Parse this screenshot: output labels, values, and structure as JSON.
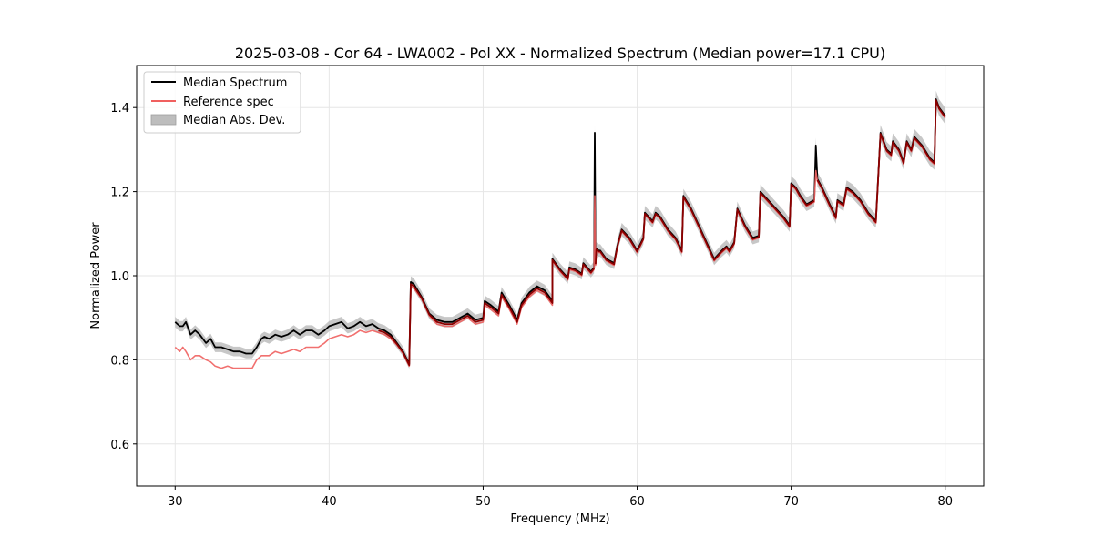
{
  "chart_data": {
    "type": "line",
    "title": "2025-03-08 - Cor 64 - LWA002 - Pol XX - Normalized Spectrum (Median power=17.1 CPU)",
    "xlabel": "Frequency (MHz)",
    "ylabel": "Normalized Power",
    "xlim": [
      27.5,
      82.5
    ],
    "ylim": [
      0.5,
      1.5
    ],
    "xticks": [
      30,
      40,
      50,
      60,
      70,
      80
    ],
    "xtick_labels": [
      "30",
      "40",
      "50",
      "60",
      "70",
      "80"
    ],
    "yticks": [
      0.6,
      0.8,
      1.0,
      1.2,
      1.4
    ],
    "ytick_labels": [
      "0.6",
      "0.8",
      "1.0",
      "1.2",
      "1.4"
    ],
    "grid": true,
    "legend_position": "upper-left",
    "legend": [
      {
        "label": "Median Spectrum",
        "kind": "line",
        "color": "#000000"
      },
      {
        "label": "Reference spec",
        "kind": "line",
        "color": "#f0605f"
      },
      {
        "label": "Median Abs. Dev.",
        "kind": "band",
        "color": "#bdbdbd"
      }
    ],
    "series": [
      {
        "name": "Median Spectrum",
        "color": "#000000",
        "x": [
          30,
          30.3,
          30.5,
          30.7,
          31.0,
          31.3,
          31.6,
          32.0,
          32.3,
          32.6,
          33.0,
          33.4,
          33.8,
          34.2,
          34.6,
          35.0,
          35.3,
          35.6,
          35.8,
          36.1,
          36.5,
          36.9,
          37.3,
          37.7,
          38.1,
          38.5,
          38.9,
          39.3,
          39.7,
          40.0,
          40.4,
          40.8,
          41.2,
          41.6,
          42.0,
          42.4,
          42.8,
          43.2,
          43.6,
          44.0,
          44.4,
          44.8,
          45.2,
          45.3,
          45.5,
          46.0,
          46.5,
          47.0,
          47.5,
          48.0,
          48.5,
          49.0,
          49.5,
          50.0,
          50.1,
          50.5,
          51.0,
          51.2,
          51.7,
          52.2,
          52.5,
          53.0,
          53.5,
          54.0,
          54.5,
          54.5,
          55.0,
          55.5,
          55.6,
          56.0,
          56.4,
          56.5,
          57.0,
          57.2,
          57.25,
          57.3,
          57.35,
          57.5,
          57.6,
          58.0,
          58.5,
          58.7,
          59.0,
          59.5,
          60.0,
          60.4,
          60.5,
          61.0,
          61.2,
          61.5,
          62.0,
          62.5,
          62.9,
          63.0,
          63.5,
          64.0,
          64.5,
          65.0,
          65.5,
          65.8,
          66.0,
          66.3,
          66.5,
          67.0,
          67.5,
          67.9,
          68.0,
          68.5,
          69.0,
          69.5,
          69.9,
          70.0,
          70.3,
          70.6,
          71.0,
          71.5,
          71.6,
          71.7,
          72.0,
          72.5,
          72.9,
          73.0,
          73.4,
          73.6,
          74.0,
          74.5,
          75.0,
          75.5,
          75.8,
          75.9,
          76.2,
          76.5,
          76.6,
          77.0,
          77.3,
          77.5,
          77.8,
          78.0,
          78.5,
          79.0,
          79.3,
          79.4,
          79.6,
          80.0
        ],
        "y": [
          0.89,
          0.88,
          0.88,
          0.89,
          0.86,
          0.87,
          0.86,
          0.84,
          0.85,
          0.83,
          0.83,
          0.825,
          0.82,
          0.82,
          0.815,
          0.815,
          0.83,
          0.85,
          0.855,
          0.85,
          0.86,
          0.855,
          0.86,
          0.87,
          0.86,
          0.87,
          0.87,
          0.86,
          0.87,
          0.88,
          0.885,
          0.89,
          0.875,
          0.88,
          0.89,
          0.88,
          0.885,
          0.875,
          0.87,
          0.86,
          0.84,
          0.82,
          0.79,
          0.985,
          0.98,
          0.95,
          0.91,
          0.895,
          0.89,
          0.89,
          0.9,
          0.91,
          0.895,
          0.9,
          0.94,
          0.93,
          0.915,
          0.96,
          0.93,
          0.895,
          0.935,
          0.96,
          0.975,
          0.965,
          0.94,
          1.04,
          1.015,
          0.995,
          1.02,
          1.015,
          1.005,
          1.03,
          1.01,
          1.02,
          1.34,
          1.03,
          1.065,
          1.06,
          1.06,
          1.04,
          1.03,
          1.07,
          1.11,
          1.09,
          1.06,
          1.09,
          1.15,
          1.13,
          1.15,
          1.14,
          1.11,
          1.09,
          1.06,
          1.19,
          1.16,
          1.12,
          1.08,
          1.04,
          1.06,
          1.07,
          1.06,
          1.08,
          1.16,
          1.12,
          1.09,
          1.095,
          1.2,
          1.18,
          1.16,
          1.14,
          1.12,
          1.22,
          1.21,
          1.19,
          1.17,
          1.18,
          1.31,
          1.23,
          1.21,
          1.17,
          1.14,
          1.18,
          1.17,
          1.21,
          1.2,
          1.18,
          1.15,
          1.13,
          1.34,
          1.33,
          1.3,
          1.29,
          1.32,
          1.3,
          1.27,
          1.32,
          1.3,
          1.33,
          1.31,
          1.28,
          1.27,
          1.42,
          1.4,
          1.38
        ]
      },
      {
        "name": "Reference spec",
        "color": "#f0605f",
        "x": [
          30,
          30.3,
          30.5,
          30.7,
          31.0,
          31.3,
          31.6,
          32.0,
          32.3,
          32.6,
          33.0,
          33.4,
          33.8,
          34.2,
          34.6,
          35.0,
          35.3,
          35.6,
          35.8,
          36.1,
          36.5,
          36.9,
          37.3,
          37.7,
          38.1,
          38.5,
          38.9,
          39.3,
          39.7,
          40.0,
          40.4,
          40.8,
          41.2,
          41.6,
          42.0,
          42.4,
          42.8,
          43.2,
          43.6,
          44.0,
          44.4,
          44.8,
          45.2,
          45.3,
          45.5,
          46.0,
          46.5,
          47.0,
          47.5,
          48.0,
          48.5,
          49.0,
          49.5,
          50.0,
          50.1,
          50.5,
          51.0,
          51.2,
          51.7,
          52.2,
          52.5,
          53.0,
          53.5,
          54.0,
          54.5,
          54.5,
          55.0,
          55.5,
          55.6,
          56.0,
          56.4,
          56.5,
          57.0,
          57.2,
          57.25,
          57.3,
          57.35,
          57.5,
          57.6,
          58.0,
          58.5,
          58.7,
          59.0,
          59.5,
          60.0,
          60.4,
          60.5,
          61.0,
          61.2,
          61.5,
          62.0,
          62.5,
          62.9,
          63.0,
          63.5,
          64.0,
          64.5,
          65.0,
          65.5,
          65.8,
          66.0,
          66.3,
          66.5,
          67.0,
          67.5,
          67.9,
          68.0,
          68.5,
          69.0,
          69.5,
          69.9,
          70.0,
          70.3,
          70.6,
          71.0,
          71.5,
          71.6,
          71.7,
          72.0,
          72.5,
          72.9,
          73.0,
          73.4,
          73.6,
          74.0,
          74.5,
          75.0,
          75.5,
          75.8,
          75.9,
          76.2,
          76.5,
          76.6,
          77.0,
          77.3,
          77.5,
          77.8,
          78.0,
          78.5,
          79.0,
          79.3,
          79.4,
          79.6,
          80.0
        ],
        "y": [
          0.83,
          0.82,
          0.83,
          0.82,
          0.8,
          0.81,
          0.81,
          0.8,
          0.795,
          0.785,
          0.78,
          0.785,
          0.78,
          0.78,
          0.78,
          0.78,
          0.8,
          0.81,
          0.81,
          0.81,
          0.82,
          0.815,
          0.82,
          0.825,
          0.82,
          0.83,
          0.83,
          0.83,
          0.84,
          0.85,
          0.855,
          0.86,
          0.855,
          0.86,
          0.87,
          0.865,
          0.87,
          0.865,
          0.86,
          0.85,
          0.835,
          0.815,
          0.785,
          0.975,
          0.97,
          0.945,
          0.905,
          0.885,
          0.88,
          0.88,
          0.89,
          0.9,
          0.885,
          0.89,
          0.93,
          0.92,
          0.905,
          0.95,
          0.92,
          0.885,
          0.925,
          0.95,
          0.965,
          0.955,
          0.93,
          1.035,
          1.01,
          0.99,
          1.015,
          1.01,
          1.0,
          1.025,
          1.005,
          1.015,
          1.19,
          1.025,
          1.06,
          1.055,
          1.055,
          1.035,
          1.025,
          1.065,
          1.105,
          1.085,
          1.055,
          1.085,
          1.145,
          1.125,
          1.145,
          1.135,
          1.105,
          1.085,
          1.055,
          1.185,
          1.155,
          1.115,
          1.075,
          1.035,
          1.055,
          1.065,
          1.055,
          1.075,
          1.155,
          1.115,
          1.085,
          1.09,
          1.195,
          1.175,
          1.155,
          1.135,
          1.115,
          1.215,
          1.205,
          1.185,
          1.165,
          1.175,
          1.25,
          1.225,
          1.205,
          1.165,
          1.135,
          1.175,
          1.165,
          1.205,
          1.195,
          1.175,
          1.145,
          1.125,
          1.335,
          1.325,
          1.295,
          1.285,
          1.315,
          1.295,
          1.265,
          1.315,
          1.295,
          1.325,
          1.305,
          1.275,
          1.265,
          1.415,
          1.395,
          1.375
        ]
      }
    ],
    "band": {
      "name": "Median Abs. Dev.",
      "color": "#bdbdbd",
      "relative_halfwidth": 0.014,
      "of_series": "Median Spectrum"
    }
  }
}
